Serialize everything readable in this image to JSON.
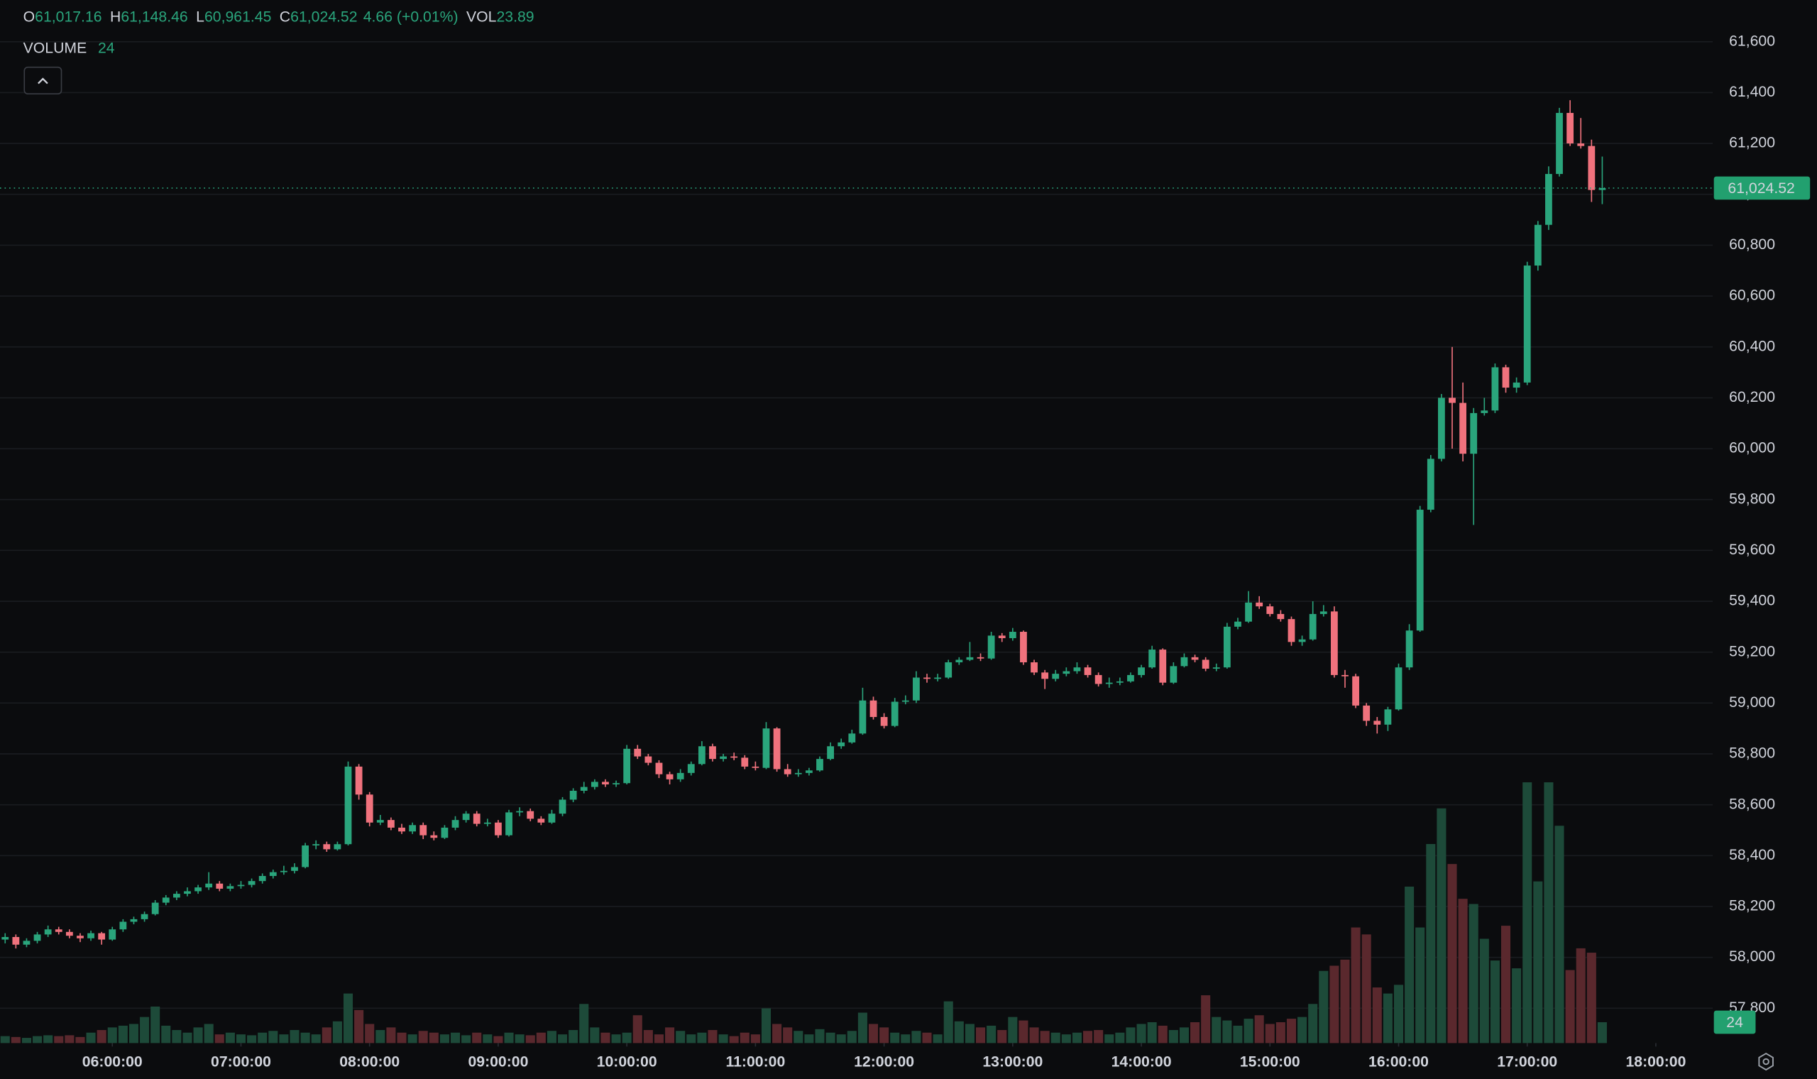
{
  "chart_data": {
    "type": "candlestick",
    "header": {
      "items": [
        {
          "key": "O",
          "value": "61,017.16"
        },
        {
          "key": "H",
          "value": "61,148.46"
        },
        {
          "key": "L",
          "value": "60,961.45"
        },
        {
          "key": "C",
          "value": "61,024.52"
        }
      ],
      "change": "4.66 (+0.01%)",
      "vol_key": "VOL",
      "vol_value": "23.89",
      "volume_title": "VOLUME"
    },
    "last_close_label": "61,024.52",
    "up_color": "#2aa57c",
    "down_color": "#f0727d",
    "up_volume_color": "#1d4a39",
    "down_volume_color": "#5a282d",
    "grid": true,
    "xlim": [
      "05:07:36",
      "18:22:12"
    ],
    "xticks": [
      "06:00:00",
      "07:00:00",
      "08:00:00",
      "09:00:00",
      "10:00:00",
      "11:00:00",
      "12:00:00",
      "13:00:00",
      "14:00:00",
      "15:00:00",
      "16:00:00",
      "17:00:00",
      "18:00:00"
    ],
    "ylim": [
      57663,
      61764
    ],
    "yticks": [
      {
        "value": 57800,
        "label": "57,800"
      },
      {
        "value": 58000,
        "label": "58,000"
      },
      {
        "value": 58200,
        "label": "58,200"
      },
      {
        "value": 58400,
        "label": "58,400"
      },
      {
        "value": 58600,
        "label": "58,600"
      },
      {
        "value": 58800,
        "label": "58,800"
      },
      {
        "value": 59000,
        "label": "59,000"
      },
      {
        "value": 59200,
        "label": "59,200"
      },
      {
        "value": 59400,
        "label": "59,400"
      },
      {
        "value": 59600,
        "label": "59,600"
      },
      {
        "value": 59800,
        "label": "59,800"
      },
      {
        "value": 60000,
        "label": "60,000"
      },
      {
        "value": 60200,
        "label": "60,200"
      },
      {
        "value": 60400,
        "label": "60,400"
      },
      {
        "value": 60600,
        "label": "60,600"
      },
      {
        "value": 60800,
        "label": "60,800"
      },
      {
        "value": 61000,
        "label": "61,000"
      },
      {
        "value": 61200,
        "label": "61,200"
      },
      {
        "value": 61400,
        "label": "61,400"
      },
      {
        "value": 61600,
        "label": "61,600"
      }
    ],
    "volume_lim": [
      0,
      1200
    ],
    "x": [
      "05:10:00",
      "05:15:00",
      "05:20:00",
      "05:25:00",
      "05:30:00",
      "05:35:00",
      "05:40:00",
      "05:45:00",
      "05:50:00",
      "05:55:00",
      "06:00:00",
      "06:05:00",
      "06:10:00",
      "06:15:00",
      "06:20:00",
      "06:25:00",
      "06:30:00",
      "06:35:00",
      "06:40:00",
      "06:45:00",
      "06:50:00",
      "06:55:00",
      "07:00:00",
      "07:05:00",
      "07:10:00",
      "07:15:00",
      "07:20:00",
      "07:25:00",
      "07:30:00",
      "07:35:00",
      "07:40:00",
      "07:45:00",
      "07:50:00",
      "07:55:00",
      "08:00:00",
      "08:05:00",
      "08:10:00",
      "08:15:00",
      "08:20:00",
      "08:25:00",
      "08:30:00",
      "08:35:00",
      "08:40:00",
      "08:45:00",
      "08:50:00",
      "08:55:00",
      "09:00:00",
      "09:05:00",
      "09:10:00",
      "09:15:00",
      "09:20:00",
      "09:25:00",
      "09:30:00",
      "09:35:00",
      "09:40:00",
      "09:45:00",
      "09:50:00",
      "09:55:00",
      "10:00:00",
      "10:05:00",
      "10:10:00",
      "10:15:00",
      "10:20:00",
      "10:25:00",
      "10:30:00",
      "10:35:00",
      "10:40:00",
      "10:45:00",
      "10:50:00",
      "10:55:00",
      "11:00:00",
      "11:05:00",
      "11:10:00",
      "11:15:00",
      "11:20:00",
      "11:25:00",
      "11:30:00",
      "11:35:00",
      "11:40:00",
      "11:45:00",
      "11:50:00",
      "11:55:00",
      "12:00:00",
      "12:05:00",
      "12:10:00",
      "12:15:00",
      "12:20:00",
      "12:25:00",
      "12:30:00",
      "12:35:00",
      "12:40:00",
      "12:45:00",
      "12:50:00",
      "12:55:00",
      "13:00:00",
      "13:05:00",
      "13:10:00",
      "13:15:00",
      "13:20:00",
      "13:25:00",
      "13:30:00",
      "13:35:00",
      "13:40:00",
      "13:45:00",
      "13:50:00",
      "13:55:00",
      "14:00:00",
      "14:05:00",
      "14:10:00",
      "14:15:00",
      "14:20:00",
      "14:25:00",
      "14:30:00",
      "14:35:00",
      "14:40:00",
      "14:45:00",
      "14:50:00",
      "14:55:00",
      "15:00:00",
      "15:05:00",
      "15:10:00",
      "15:15:00",
      "15:20:00",
      "15:25:00",
      "15:30:00",
      "15:35:00",
      "15:40:00",
      "15:45:00",
      "15:50:00",
      "15:55:00",
      "16:00:00",
      "16:05:00",
      "16:10:00",
      "16:15:00",
      "16:20:00",
      "16:25:00",
      "16:30:00",
      "16:35:00",
      "16:40:00",
      "16:45:00",
      "16:50:00",
      "16:55:00",
      "17:00:00",
      "17:05:00",
      "17:10:00",
      "17:15:00",
      "17:20:00",
      "17:25:00",
      "17:30:00",
      "17:35:00"
    ],
    "open": [
      58070,
      58080,
      58050,
      58065,
      58090,
      58110,
      58100,
      58085,
      58075,
      58095,
      58070,
      58110,
      58140,
      58150,
      58170,
      58215,
      58235,
      58250,
      58260,
      58275,
      58290,
      58270,
      58280,
      58285,
      58300,
      58320,
      58335,
      58340,
      58355,
      58440,
      58445,
      58425,
      58445,
      58750,
      58640,
      58530,
      58540,
      58510,
      58495,
      58520,
      58480,
      58470,
      58510,
      58540,
      58565,
      58525,
      58530,
      58480,
      58570,
      58575,
      58545,
      58530,
      58565,
      58620,
      58655,
      58670,
      58690,
      58680,
      58685,
      58820,
      58790,
      58765,
      58720,
      58700,
      58725,
      58760,
      58830,
      58780,
      58790,
      58785,
      58750,
      58745,
      58900,
      58740,
      58720,
      58725,
      58735,
      58780,
      58830,
      58845,
      58880,
      59010,
      58945,
      58910,
      59005,
      59010,
      59100,
      59095,
      59100,
      59160,
      59170,
      59180,
      59175,
      59265,
      59255,
      59280,
      59160,
      59120,
      59095,
      59115,
      59125,
      59140,
      59110,
      59075,
      59080,
      59085,
      59110,
      59140,
      59210,
      59080,
      59145,
      59180,
      59170,
      59135,
      59140,
      59300,
      59320,
      59395,
      59380,
      59350,
      59330,
      59240,
      59250,
      59350,
      59360,
      59110,
      59105,
      58990,
      58930,
      58915,
      58975,
      59140,
      59285,
      59760,
      59960,
      60200,
      60180,
      59980,
      60140,
      60150,
      60320,
      60240,
      60260,
      60720,
      60880,
      61080,
      61320,
      61200,
      61190,
      61017.16
    ],
    "high": [
      58095,
      58090,
      58075,
      58100,
      58125,
      58120,
      58110,
      58095,
      58105,
      58100,
      58120,
      58150,
      58160,
      58180,
      58225,
      58245,
      58260,
      58275,
      58285,
      58335,
      58300,
      58290,
      58300,
      58310,
      58330,
      58345,
      58360,
      58370,
      58450,
      58460,
      58455,
      58455,
      58770,
      58760,
      58650,
      58560,
      58550,
      58525,
      58530,
      58530,
      58495,
      58520,
      58555,
      58575,
      58575,
      58545,
      58540,
      58580,
      58590,
      58585,
      58555,
      58580,
      58630,
      58665,
      58690,
      58700,
      58700,
      58695,
      58835,
      58835,
      58800,
      58775,
      58730,
      58740,
      58770,
      58850,
      58840,
      58800,
      58805,
      58795,
      58770,
      58925,
      58905,
      58760,
      58740,
      58745,
      58790,
      58845,
      58860,
      58895,
      59060,
      59025,
      58960,
      59020,
      59030,
      59125,
      59115,
      59115,
      59170,
      59180,
      59240,
      59195,
      59280,
      59275,
      59295,
      59285,
      59170,
      59130,
      59130,
      59140,
      59160,
      59150,
      59120,
      59100,
      59100,
      59120,
      59150,
      59225,
      59215,
      59160,
      59195,
      59190,
      59180,
      59155,
      59315,
      59335,
      59440,
      59420,
      59390,
      59365,
      59340,
      59265,
      59400,
      59385,
      59380,
      59130,
      59115,
      59000,
      58945,
      58985,
      59155,
      59310,
      59775,
      59975,
      60215,
      60400,
      60260,
      60160,
      60200,
      60335,
      60330,
      60280,
      60735,
      60895,
      61110,
      61340,
      61370,
      61300,
      61215,
      61148.46
    ],
    "low": [
      58055,
      58035,
      58040,
      58055,
      58080,
      58090,
      58075,
      58060,
      58065,
      58050,
      58065,
      58100,
      58130,
      58140,
      58165,
      58205,
      58225,
      58240,
      58250,
      58265,
      58260,
      58260,
      58270,
      58275,
      58290,
      58310,
      58325,
      58330,
      58350,
      58425,
      58415,
      58420,
      58440,
      58620,
      58515,
      58520,
      58500,
      58485,
      58485,
      58465,
      58460,
      58465,
      58500,
      58530,
      58515,
      58515,
      58470,
      58475,
      58555,
      58535,
      58520,
      58525,
      58555,
      58610,
      58645,
      58660,
      58670,
      58670,
      58680,
      58780,
      58755,
      58705,
      58680,
      58690,
      58715,
      58755,
      58770,
      58770,
      58775,
      58740,
      58735,
      58740,
      58730,
      58710,
      58710,
      58715,
      58730,
      58775,
      58820,
      58840,
      58875,
      58935,
      58900,
      58905,
      58995,
      59000,
      59080,
      59085,
      59095,
      59150,
      59165,
      59165,
      59170,
      59240,
      59245,
      59150,
      59110,
      59055,
      59085,
      59105,
      59115,
      59100,
      59065,
      59060,
      59070,
      59080,
      59100,
      59135,
      59070,
      59075,
      59140,
      59160,
      59125,
      59125,
      59135,
      59290,
      59315,
      59370,
      59340,
      59320,
      59225,
      59225,
      59245,
      59340,
      59100,
      59060,
      58980,
      58910,
      58880,
      58890,
      58970,
      59130,
      59280,
      59750,
      59950,
      60000,
      59950,
      59700,
      60130,
      60140,
      60220,
      60220,
      60250,
      60700,
      60860,
      61070,
      61190,
      61180,
      60970,
      60961.45
    ],
    "close": [
      58080,
      58050,
      58065,
      58090,
      58110,
      58100,
      58085,
      58075,
      58095,
      58070,
      58110,
      58140,
      58150,
      58170,
      58215,
      58235,
      58250,
      58260,
      58275,
      58290,
      58270,
      58280,
      58285,
      58300,
      58320,
      58335,
      58340,
      58355,
      58440,
      58445,
      58425,
      58445,
      58750,
      58640,
      58530,
      58540,
      58510,
      58495,
      58520,
      58480,
      58470,
      58510,
      58540,
      58565,
      58525,
      58530,
      58480,
      58570,
      58575,
      58545,
      58530,
      58565,
      58620,
      58655,
      58670,
      58690,
      58680,
      58685,
      58820,
      58790,
      58765,
      58720,
      58700,
      58725,
      58760,
      58830,
      58780,
      58790,
      58785,
      58750,
      58745,
      58900,
      58740,
      58720,
      58725,
      58735,
      58780,
      58830,
      58845,
      58880,
      59010,
      58945,
      58910,
      59005,
      59010,
      59100,
      59095,
      59100,
      59160,
      59170,
      59180,
      59175,
      59265,
      59255,
      59280,
      59160,
      59120,
      59095,
      59115,
      59125,
      59140,
      59110,
      59075,
      59080,
      59085,
      59110,
      59140,
      59210,
      59080,
      59145,
      59180,
      59170,
      59135,
      59140,
      59300,
      59320,
      59395,
      59380,
      59350,
      59330,
      59240,
      59250,
      59350,
      59360,
      59110,
      59105,
      58990,
      58930,
      58915,
      58975,
      59140,
      59285,
      59760,
      59960,
      60200,
      60180,
      59980,
      60140,
      60150,
      60320,
      60240,
      60260,
      60720,
      60880,
      61080,
      61320,
      61200,
      61190,
      61017.16,
      61024.52
    ],
    "volume": [
      8,
      7,
      6,
      8,
      9,
      8,
      9,
      7,
      12,
      15,
      18,
      20,
      22,
      30,
      42,
      20,
      15,
      12,
      18,
      22,
      10,
      12,
      10,
      9,
      12,
      14,
      10,
      15,
      12,
      10,
      18,
      25,
      57,
      38,
      22,
      15,
      18,
      12,
      10,
      14,
      12,
      10,
      12,
      9,
      12,
      10,
      8,
      12,
      10,
      9,
      12,
      14,
      10,
      15,
      45,
      18,
      12,
      10,
      12,
      32,
      15,
      10,
      18,
      14,
      10,
      12,
      15,
      10,
      8,
      12,
      10,
      40,
      22,
      18,
      14,
      10,
      16,
      12,
      10,
      14,
      35,
      22,
      18,
      12,
      10,
      14,
      12,
      10,
      48,
      25,
      22,
      18,
      20,
      15,
      30,
      26,
      18,
      14,
      12,
      10,
      12,
      14,
      15,
      10,
      12,
      18,
      22,
      24,
      20,
      15,
      18,
      24,
      55,
      30,
      26,
      20,
      28,
      32,
      22,
      24,
      28,
      30,
      45,
      83,
      89,
      96,
      133,
      125,
      64,
      57,
      67,
      180,
      133,
      229,
      270,
      206,
      166,
      160,
      120,
      95,
      135,
      86,
      300,
      186,
      300,
      250,
      84,
      109,
      104,
      24
    ]
  }
}
